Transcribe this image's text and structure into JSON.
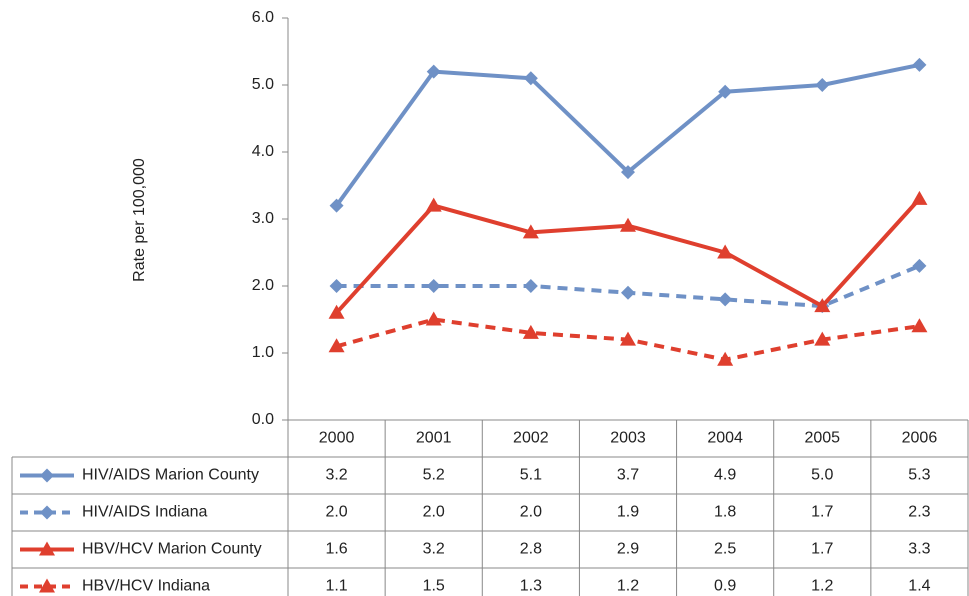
{
  "chart_data": {
    "type": "line",
    "y_label": "Rate per 100,000",
    "categories": [
      "2000",
      "2001",
      "2002",
      "2003",
      "2004",
      "2005",
      "2006"
    ],
    "ylim": [
      0,
      6
    ],
    "yticks": [
      {
        "value": 0,
        "label": "0.0"
      },
      {
        "value": 1,
        "label": "1.0"
      },
      {
        "value": 2,
        "label": "2.0"
      },
      {
        "value": 3,
        "label": "3.0"
      },
      {
        "value": 4,
        "label": "4.0"
      },
      {
        "value": 5,
        "label": "5.0"
      },
      {
        "value": 6,
        "label": "6.0"
      }
    ],
    "grid": false,
    "data_table": true,
    "series": [
      {
        "name": "HIV/AIDS Marion County",
        "color": "#6f91c6",
        "marker": "diamond",
        "dashed": false,
        "values": [
          3.2,
          5.2,
          5.1,
          3.7,
          4.9,
          5,
          5.3
        ],
        "value_labels": [
          "3.2",
          "5.2",
          "5.1",
          "3.7",
          "4.9",
          "5.0",
          "5.3"
        ]
      },
      {
        "name": "HIV/AIDS Indiana",
        "color": "#6f91c6",
        "marker": "diamond",
        "dashed": true,
        "values": [
          2,
          2,
          2,
          1.9,
          1.8,
          1.7,
          2.3
        ],
        "value_labels": [
          "2.0",
          "2.0",
          "2.0",
          "1.9",
          "1.8",
          "1.7",
          "2.3"
        ]
      },
      {
        "name": "HBV/HCV Marion County",
        "color": "#df3f2e",
        "marker": "triangle",
        "dashed": false,
        "values": [
          1.6,
          3.2,
          2.8,
          2.9,
          2.5,
          1.7,
          3.3
        ],
        "value_labels": [
          "1.6",
          "3.2",
          "2.8",
          "2.9",
          "2.5",
          "1.7",
          "3.3"
        ]
      },
      {
        "name": "HBV/HCV Indiana",
        "color": "#df3f2e",
        "marker": "triangle",
        "dashed": true,
        "values": [
          1.1,
          1.5,
          1.3,
          1.2,
          0.9,
          1.2,
          1.4
        ],
        "value_labels": [
          "1.1",
          "1.5",
          "1.3",
          "1.2",
          "0.9",
          "1.2",
          "1.4"
        ]
      }
    ]
  }
}
